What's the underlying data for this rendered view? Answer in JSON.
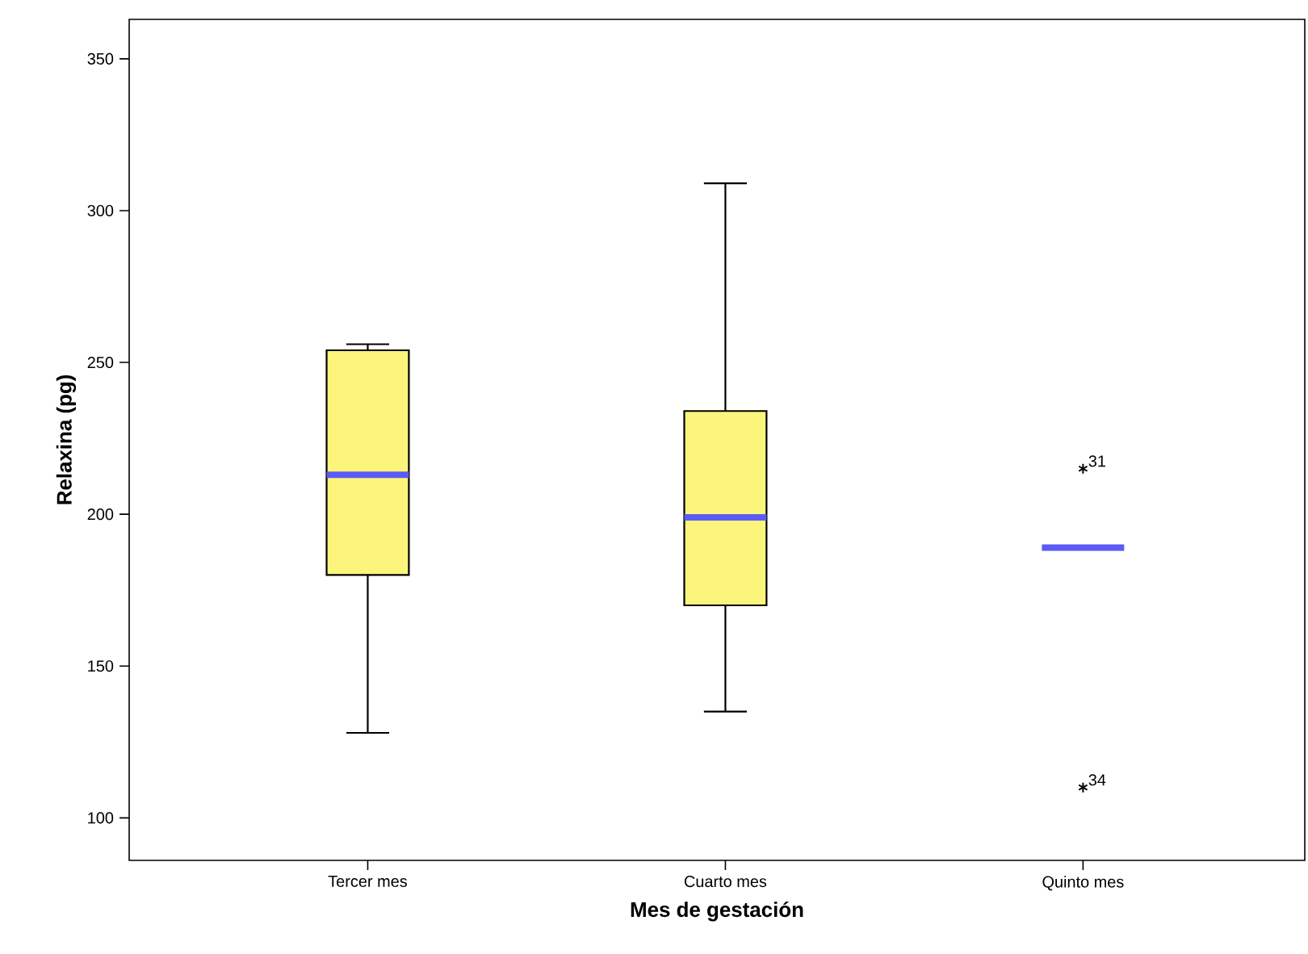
{
  "chart_data": {
    "type": "box",
    "xlabel": "Mes de gestación",
    "ylabel": "Relaxina (pg)",
    "categories": [
      "Tercer mes",
      "Cuarto mes",
      "Quinto mes"
    ],
    "boxes": [
      {
        "low": 128,
        "q1": 180,
        "median": 213,
        "q3": 254,
        "high": 256
      },
      {
        "low": 135,
        "q1": 170,
        "median": 199,
        "q3": 234,
        "high": 309
      },
      {
        "low": 189,
        "q1": 189,
        "median": 189,
        "q3": 189,
        "high": 189,
        "outliers": [
          215,
          110
        ]
      }
    ],
    "colors": [
      "#fbf57c",
      "#fbf57c",
      "#5b5bf5"
    ],
    "marker": "star",
    "ylim": [
      86,
      363
    ],
    "yticks": [
      100,
      150,
      200,
      250,
      300,
      350
    ],
    "annotations": [
      "31",
      "34"
    ]
  }
}
